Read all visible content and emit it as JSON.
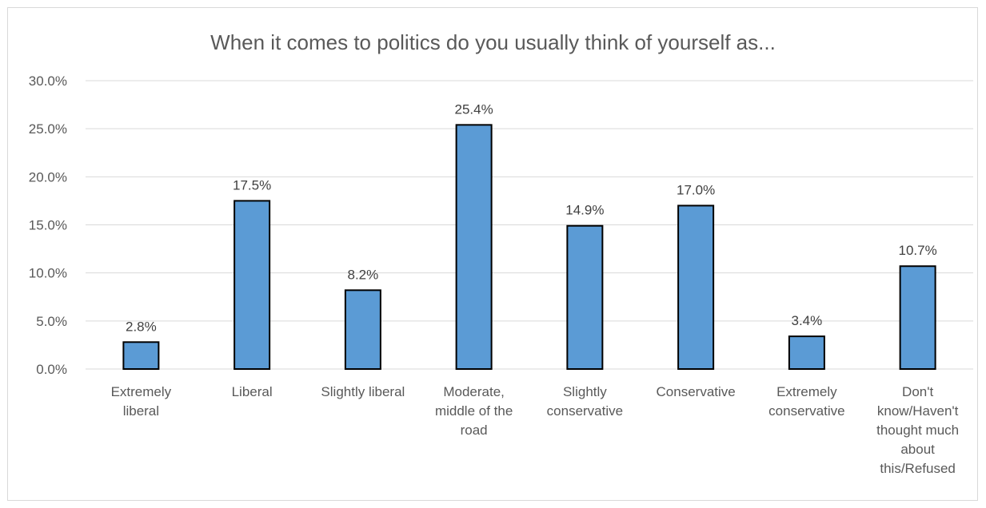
{
  "chart_data": {
    "type": "bar",
    "title": "When it comes to politics do you usually think of yourself as...",
    "categories": [
      "Extremely liberal",
      "Liberal",
      "Slightly liberal",
      "Moderate, middle of the road",
      "Slightly conservative",
      "Conservative",
      "Extremely conservative",
      "Don't know/Haven't thought much about this/Refused"
    ],
    "category_label_lines": [
      [
        "Extremely",
        "liberal"
      ],
      [
        "Liberal"
      ],
      [
        "Slightly liberal"
      ],
      [
        "Moderate,",
        "middle of the",
        "road"
      ],
      [
        "Slightly",
        "conservative"
      ],
      [
        "Conservative"
      ],
      [
        "Extremely",
        "conservative"
      ],
      [
        "Don't",
        "know/Haven't",
        "thought much",
        "about",
        "this/Refused"
      ]
    ],
    "values": [
      2.8,
      17.5,
      8.2,
      25.4,
      14.9,
      17.0,
      3.4,
      10.7
    ],
    "data_labels": [
      "2.8%",
      "17.5%",
      "8.2%",
      "25.4%",
      "14.9%",
      "17.0%",
      "3.4%",
      "10.7%"
    ],
    "y_ticks": [
      0,
      5,
      10,
      15,
      20,
      25,
      30
    ],
    "y_tick_labels": [
      "0.0%",
      "5.0%",
      "10.0%",
      "15.0%",
      "20.0%",
      "25.0%",
      "30.0%"
    ],
    "ylim": [
      0,
      30
    ],
    "xlabel": "",
    "ylabel": "",
    "grid": true,
    "bar_color": "#5b9bd5",
    "bar_border_color": "#000000",
    "gridline_color": "#d9d9d9",
    "text_color": "#595959"
  }
}
